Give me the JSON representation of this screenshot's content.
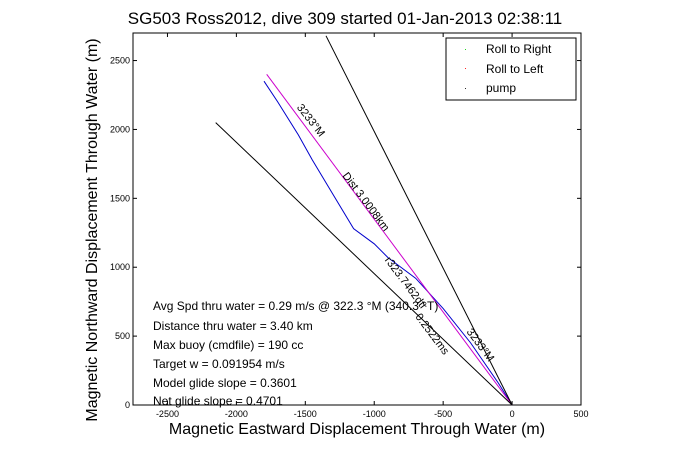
{
  "chart_data": {
    "type": "line",
    "title": "SG503 Ross2012, dive 309 started 01-Jan-2013 02:38:11",
    "xlabel": "Magnetic Eastward Displacement Through Water (m)",
    "ylabel": "Magnetic Northward Displacement Through Water (m)",
    "xlim": [
      -2750,
      500
    ],
    "ylim": [
      0,
      2700
    ],
    "xticks": [
      "-2500",
      "-2000",
      "-1500",
      "-1000",
      "-500",
      "0",
      "500"
    ],
    "yticks": [
      "0",
      "500",
      "1000",
      "1500",
      "2000",
      "2500"
    ],
    "grid": false,
    "legend_position": "top-right",
    "legend": [
      {
        "label": "Roll to Right",
        "color": "#00cc00"
      },
      {
        "label": "Roll to Left",
        "color": "#ff0000"
      },
      {
        "label": "pump",
        "color": "#000000"
      }
    ],
    "series": [
      {
        "color": "#0000cc",
        "x": [
          0,
          -100,
          -300,
          -500,
          -700,
          -900,
          -1000,
          -1150,
          -1300,
          -1450,
          -1550,
          -1700,
          -1800
        ],
        "y": [
          0,
          160,
          450,
          700,
          920,
          1070,
          1170,
          1280,
          1530,
          1780,
          1960,
          2200,
          2350
        ]
      },
      {
        "color": "#cc00cc",
        "x": [
          0,
          -1780
        ],
        "y": [
          0,
          2400
        ]
      },
      {
        "color": "#000000",
        "x": [
          0,
          -2150
        ],
        "y": [
          0,
          2050
        ]
      },
      {
        "color": "#000000",
        "x": [
          0,
          -1350
        ],
        "y": [
          0,
          2680
        ]
      }
    ],
    "annotations": [
      {
        "text": "3233°M",
        "x": -1480,
        "y": 2050,
        "rotation": 52
      },
      {
        "text": "Dist 3.0008km",
        "x": -1080,
        "y": 1460,
        "rotation": 53
      },
      {
        "text": "r323.7462dtr",
        "x": -790,
        "y": 870,
        "rotation": 53
      },
      {
        "text": "0.2522ms",
        "x": -600,
        "y": 500,
        "rotation": 53
      },
      {
        "text": "3233°M",
        "x": -250,
        "y": 420,
        "rotation": 53
      }
    ],
    "stats": [
      "Avg Spd thru water = 0.29 m/s @ 322.3 °M (340.3 °T)",
      "Distance thru water = 3.40 km",
      "Max buoy (cmdfile) = 190 cc",
      "Target w = 0.091954 m/s",
      "Model glide slope = 0.3601",
      "Net glide slope = 0.4701"
    ]
  }
}
